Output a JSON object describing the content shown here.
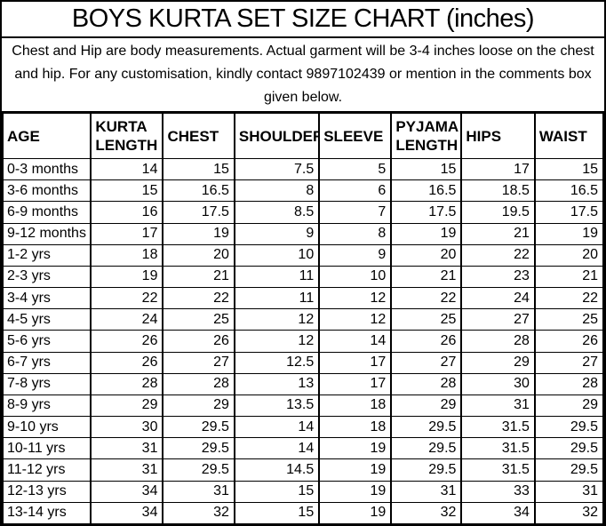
{
  "title": "BOYS KURTA SET SIZE CHART (inches)",
  "note": "Chest and Hip are body measurements. Actual garment will be 3-4 inches loose on the chest and hip. For any customisation, kindly contact 9897102439 or mention in the comments box given below.",
  "contact_phone": "9897102439",
  "colors": {
    "text": "#000000",
    "background": "#ffffff",
    "border": "#000000"
  },
  "chart_data": {
    "type": "table",
    "title": "BOYS KURTA SET SIZE CHART (inches)",
    "units": "inches",
    "columns": [
      "AGE",
      "KURTA LENGTH",
      "CHEST",
      "SHOULDER",
      "SLEEVE",
      "PYJAMA LENGTH",
      "HIPS",
      "WAIST"
    ],
    "rows": [
      [
        "0-3 months",
        "14",
        "15",
        "7.5",
        "5",
        "15",
        "17",
        "15"
      ],
      [
        "3-6 months",
        "15",
        "16.5",
        "8",
        "6",
        "16.5",
        "18.5",
        "16.5"
      ],
      [
        "6-9 months",
        "16",
        "17.5",
        "8.5",
        "7",
        "17.5",
        "19.5",
        "17.5"
      ],
      [
        "9-12 months",
        "17",
        "19",
        "9",
        "8",
        "19",
        "21",
        "19"
      ],
      [
        "1-2 yrs",
        "18",
        "20",
        "10",
        "9",
        "20",
        "22",
        "20"
      ],
      [
        "2-3 yrs",
        "19",
        "21",
        "11",
        "10",
        "21",
        "23",
        "21"
      ],
      [
        "3-4 yrs",
        "22",
        "22",
        "11",
        "12",
        "22",
        "24",
        "22"
      ],
      [
        "4-5 yrs",
        "24",
        "25",
        "12",
        "12",
        "25",
        "27",
        "25"
      ],
      [
        "5-6 yrs",
        "26",
        "26",
        "12",
        "14",
        "26",
        "28",
        "26"
      ],
      [
        "6-7 yrs",
        "26",
        "27",
        "12.5",
        "17",
        "27",
        "29",
        "27"
      ],
      [
        "7-8 yrs",
        "28",
        "28",
        "13",
        "17",
        "28",
        "30",
        "28"
      ],
      [
        "8-9 yrs",
        "29",
        "29",
        "13.5",
        "18",
        "29",
        "31",
        "29"
      ],
      [
        "9-10 yrs",
        "30",
        "29.5",
        "14",
        "18",
        "29.5",
        "31.5",
        "29.5"
      ],
      [
        "10-11 yrs",
        "31",
        "29.5",
        "14",
        "19",
        "29.5",
        "31.5",
        "29.5"
      ],
      [
        "11-12 yrs",
        "31",
        "29.5",
        "14.5",
        "19",
        "29.5",
        "31.5",
        "29.5"
      ],
      [
        "12-13 yrs",
        "34",
        "31",
        "15",
        "19",
        "31",
        "33",
        "31"
      ],
      [
        "13-14 yrs",
        "34",
        "32",
        "15",
        "19",
        "32",
        "34",
        "32"
      ]
    ]
  }
}
